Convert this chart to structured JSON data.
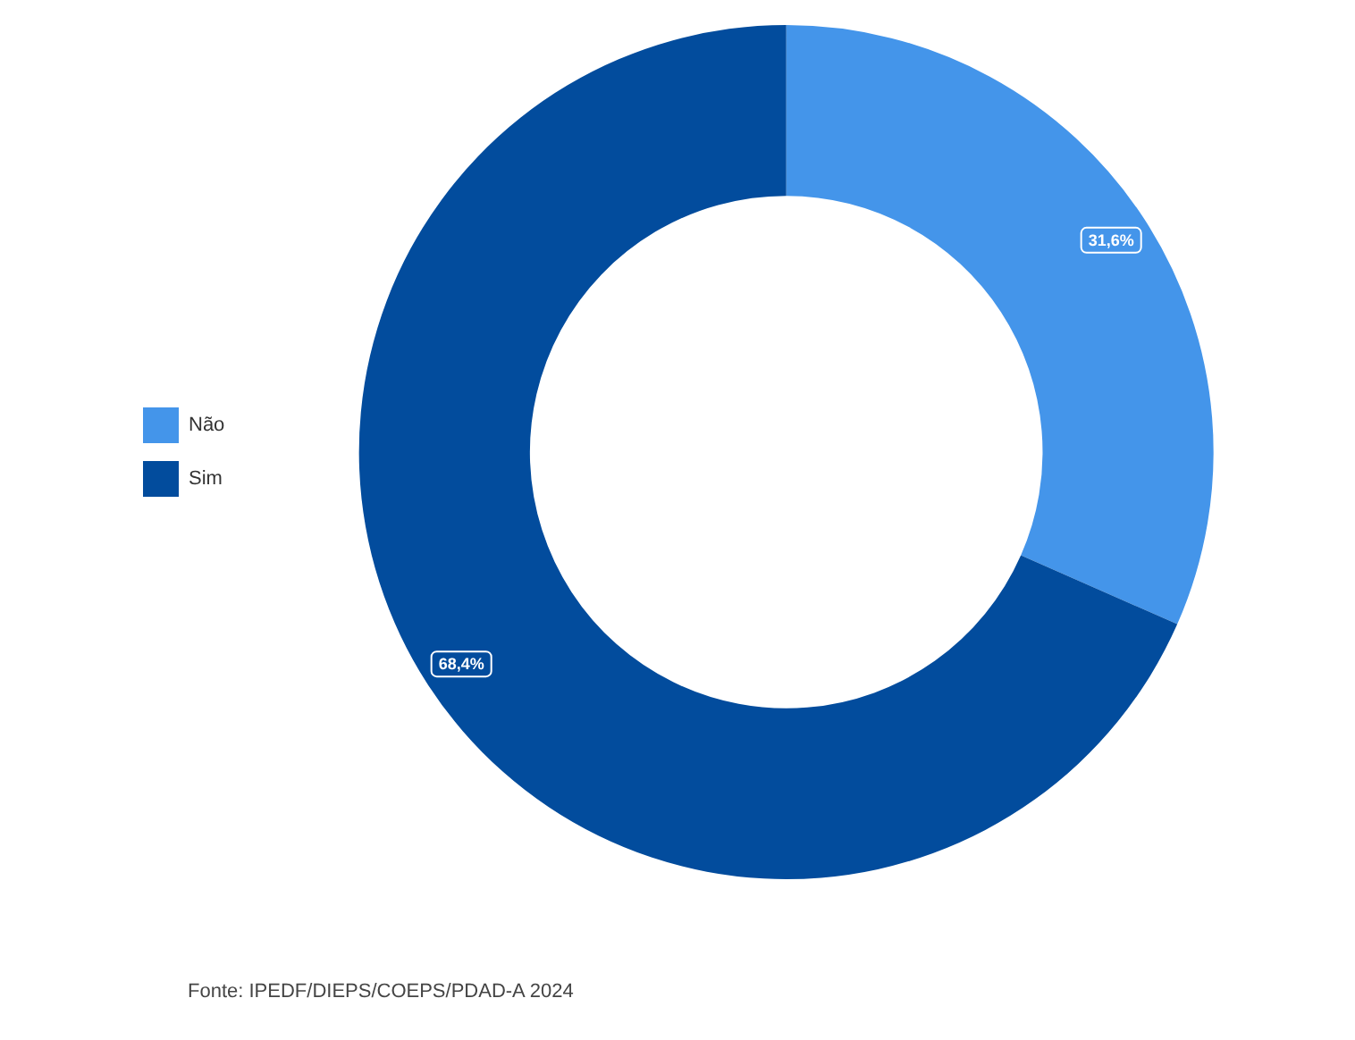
{
  "chart_data": {
    "type": "donut",
    "categories": [
      "Não",
      "Sim"
    ],
    "values": [
      31.6,
      68.4
    ],
    "value_labels": [
      "31,6%",
      "68,4%"
    ],
    "colors": [
      "#4495ea",
      "#024c9d"
    ],
    "legend": "left",
    "annotations": [
      "Fonte: IPEDF/DIEPS/COEPS/PDAD-A 2024"
    ]
  }
}
